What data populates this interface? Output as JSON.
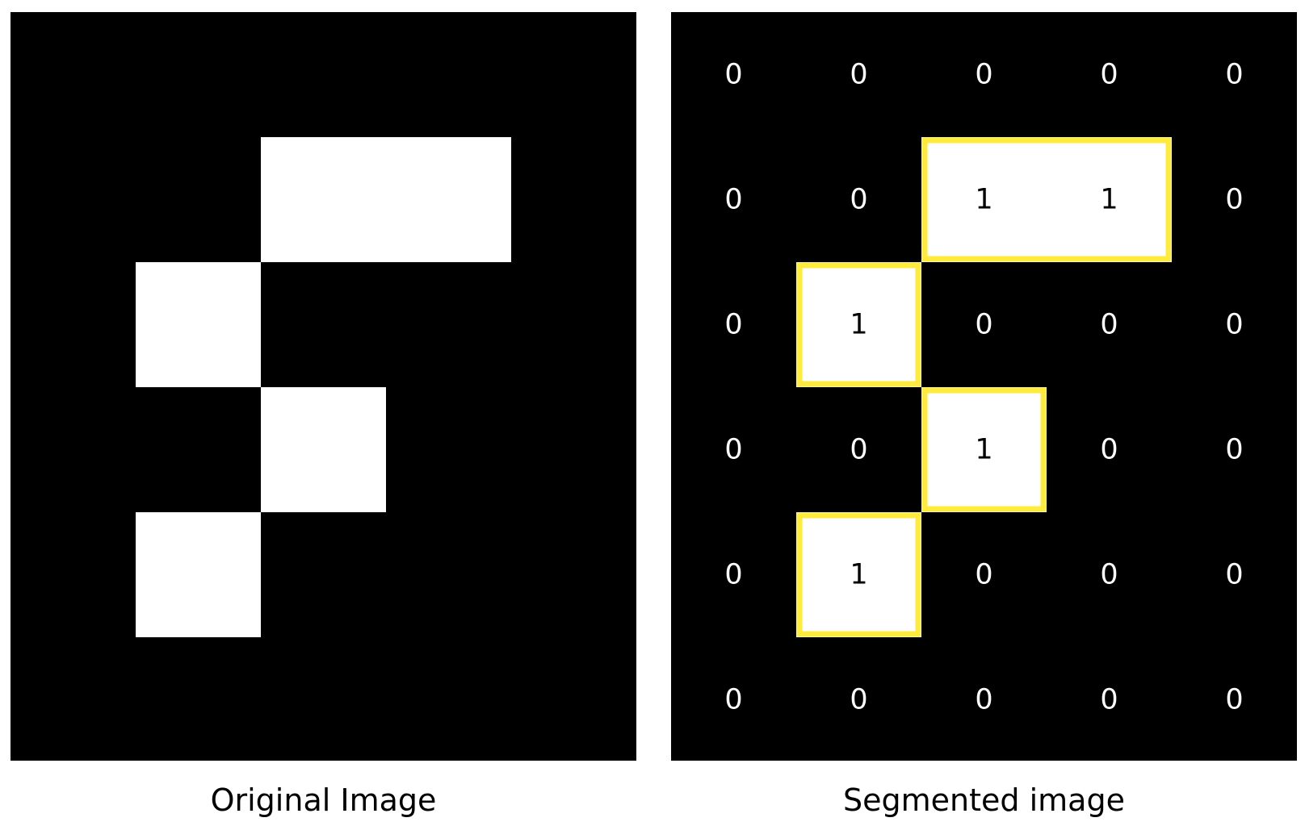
{
  "original": {
    "caption": "Original Image",
    "grid": [
      [
        0,
        0,
        0,
        0,
        0
      ],
      [
        0,
        0,
        1,
        1,
        0
      ],
      [
        0,
        1,
        0,
        0,
        0
      ],
      [
        0,
        0,
        1,
        0,
        0
      ],
      [
        0,
        1,
        0,
        0,
        0
      ],
      [
        0,
        0,
        0,
        0,
        0
      ]
    ]
  },
  "segmented": {
    "caption": "Segmented image",
    "labels": [
      [
        "0",
        "0",
        "0",
        "0",
        "0"
      ],
      [
        "0",
        "0",
        "1",
        "1",
        "0"
      ],
      [
        "0",
        "1",
        "0",
        "0",
        "0"
      ],
      [
        "0",
        "0",
        "1",
        "0",
        "0"
      ],
      [
        "0",
        "1",
        "0",
        "0",
        "0"
      ],
      [
        "0",
        "0",
        "0",
        "0",
        "0"
      ]
    ],
    "outline_color": "#ffeb3b"
  },
  "colors": {
    "background": "#000000",
    "foreground": "#ffffff",
    "page": "#ffffff"
  }
}
